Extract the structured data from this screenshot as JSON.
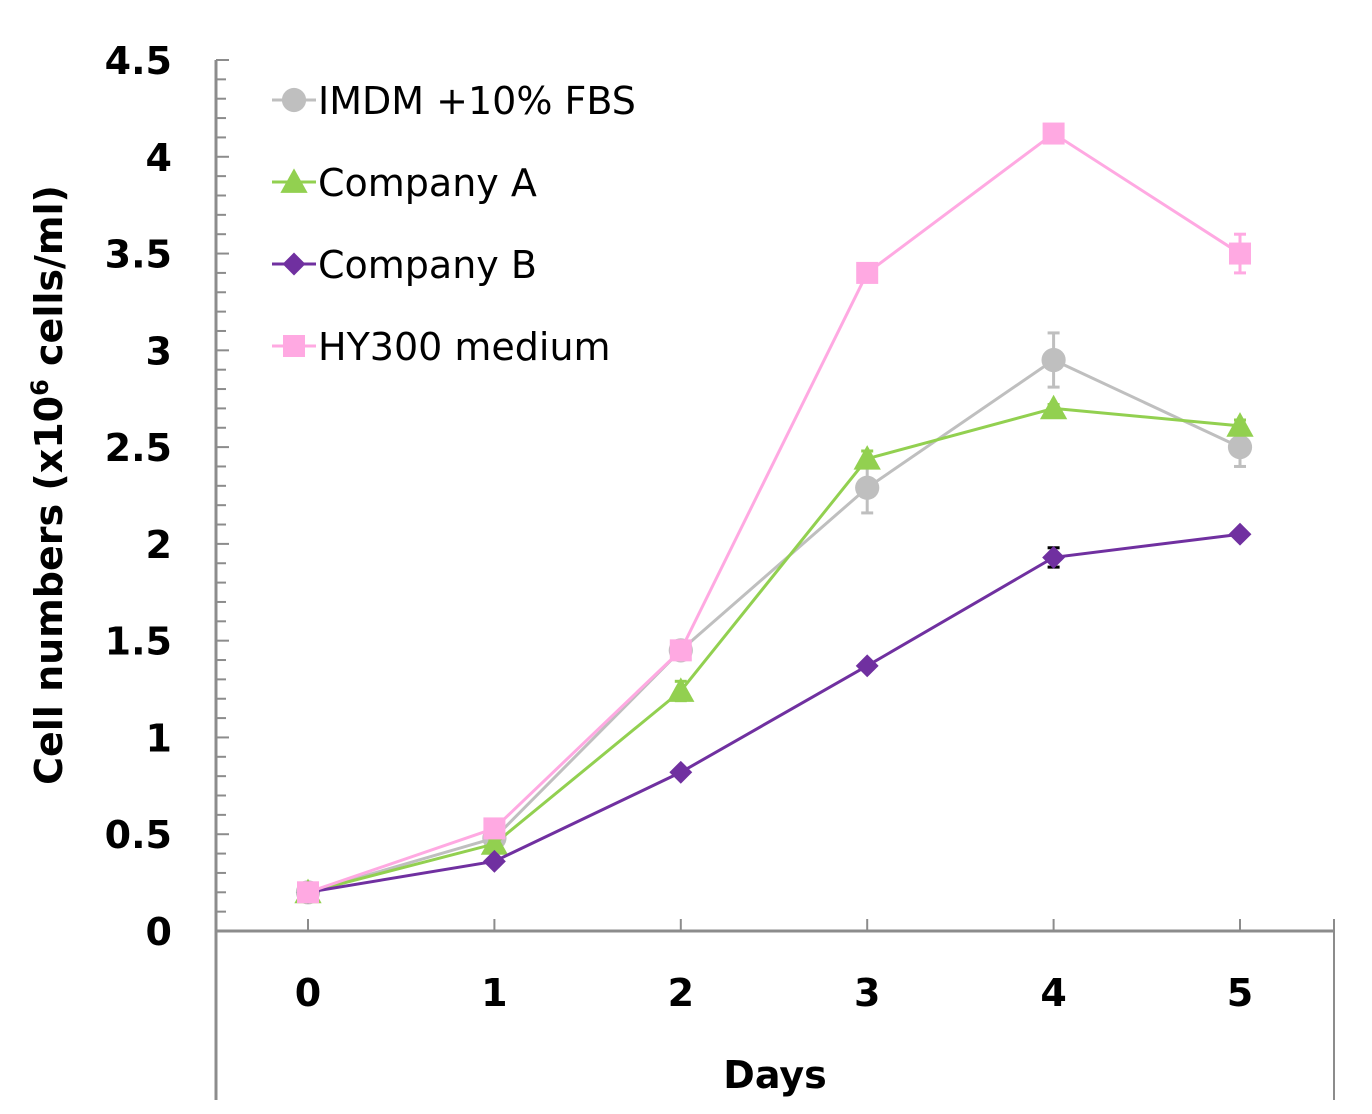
{
  "chart_data": {
    "type": "line",
    "title": "",
    "xlabel": "Days",
    "ylabel": "Cell numbers (x10",
    "ylabel_superscript": "6",
    "ylabel_suffix": " cells/ml)",
    "x": [
      0,
      1,
      2,
      3,
      4,
      5
    ],
    "x_tick_labels": [
      "0",
      "1",
      "2",
      "3",
      "4",
      "5"
    ],
    "y_tick_labels": [
      "0",
      "0.5",
      "1",
      "1.5",
      "2",
      "2.5",
      "3",
      "3.5",
      "4",
      "4.5"
    ],
    "ylim": [
      0,
      4.5
    ],
    "y_major_step": 0.5,
    "y_minor_step": 0.1,
    "grid": false,
    "legend_position": "top-left",
    "series": [
      {
        "name": "IMDM +10% FBS",
        "marker": "circle",
        "color": "#BFBFBF",
        "values": [
          0.2,
          0.48,
          1.45,
          2.29,
          2.95,
          2.5
        ],
        "errors": [
          0,
          0.02,
          0.02,
          0.13,
          0.14,
          0.1
        ]
      },
      {
        "name": "Company A",
        "marker": "triangle",
        "color": "#92D050",
        "values": [
          0.2,
          0.45,
          1.24,
          2.44,
          2.7,
          2.61
        ],
        "errors": [
          0,
          0.02,
          0.05,
          0.04,
          0.02,
          0.03
        ]
      },
      {
        "name": "Company B",
        "marker": "diamond",
        "color": "#7030A0",
        "values": [
          0.2,
          0.36,
          0.82,
          1.37,
          1.93,
          2.05
        ],
        "errors": [
          0,
          0.01,
          0.01,
          0.01,
          0.05,
          0.01
        ]
      },
      {
        "name": "HY300 medium",
        "marker": "square",
        "color": "#FFA9E2",
        "values": [
          0.2,
          0.53,
          1.45,
          3.4,
          4.12,
          3.5
        ],
        "errors": [
          0,
          0.01,
          0.01,
          0.01,
          0.01,
          0.1
        ]
      }
    ]
  }
}
